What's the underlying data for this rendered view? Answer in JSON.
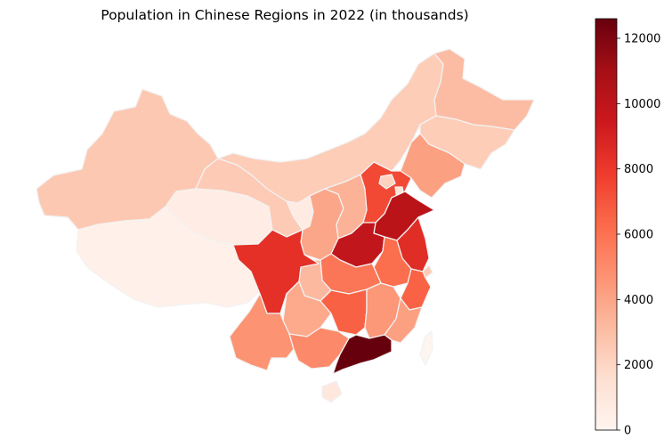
{
  "chart_data": {
    "type": "map",
    "title": "Population in Chinese Regions in 2022 (in thousands)",
    "colormap": "Reds",
    "colorbar": {
      "min": 0,
      "max": 12600,
      "ticks": [
        0,
        2000,
        4000,
        6000,
        8000,
        10000,
        12000
      ],
      "tick_labels": [
        "0",
        "2000",
        "4000",
        "6000",
        "8000",
        "10000",
        "12000"
      ]
    },
    "regions": [
      {
        "name": "Heilongjiang",
        "value": 3100
      },
      {
        "name": "Jilin",
        "value": 2400
      },
      {
        "name": "Liaoning",
        "value": 4200
      },
      {
        "name": "Inner Mongolia",
        "value": 2400
      },
      {
        "name": "Xinjiang",
        "value": 2600
      },
      {
        "name": "Tibet",
        "value": 360
      },
      {
        "name": "Qinghai",
        "value": 590
      },
      {
        "name": "Gansu",
        "value": 2500
      },
      {
        "name": "Ningxia",
        "value": 720
      },
      {
        "name": "Shaanxi",
        "value": 3950
      },
      {
        "name": "Shanxi",
        "value": 3480
      },
      {
        "name": "Hebei",
        "value": 7420
      },
      {
        "name": "Beijing",
        "value": 2180
      },
      {
        "name": "Tianjin",
        "value": 1360
      },
      {
        "name": "Shandong",
        "value": 10160
      },
      {
        "name": "Henan",
        "value": 9870
      },
      {
        "name": "Jiangsu",
        "value": 8510
      },
      {
        "name": "Anhui",
        "value": 6130
      },
      {
        "name": "Shanghai",
        "value": 2480
      },
      {
        "name": "Zhejiang",
        "value": 6580
      },
      {
        "name": "Hubei",
        "value": 5840
      },
      {
        "name": "Sichuan",
        "value": 8370
      },
      {
        "name": "Chongqing",
        "value": 3210
      },
      {
        "name": "Hunan",
        "value": 6600
      },
      {
        "name": "Jiangxi",
        "value": 4520
      },
      {
        "name": "Fujian",
        "value": 4190
      },
      {
        "name": "Guizhou",
        "value": 3860
      },
      {
        "name": "Yunnan",
        "value": 4690
      },
      {
        "name": "Guangxi",
        "value": 5050
      },
      {
        "name": "Guangdong",
        "value": 12660
      },
      {
        "name": "Hainan",
        "value": 1020
      },
      {
        "name": "Taiwan",
        "value": 0
      }
    ]
  }
}
